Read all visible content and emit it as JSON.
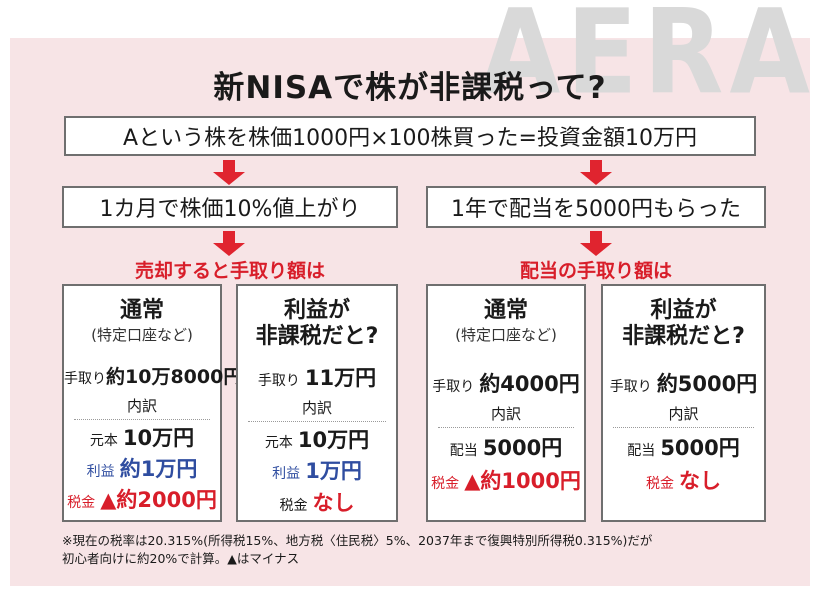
{
  "watermark": "AERA",
  "title": "新NISAで株が非課税って?",
  "premise": "Aという株を株価1000円×100株買った=投資金額10万円",
  "scenarios": {
    "left": "1カ月で株価10%値上がり",
    "right": "1年で配当を5000円もらった"
  },
  "section_labels": {
    "sell": "売却すると手取り額は",
    "dividend": "配当の手取り額は"
  },
  "cards": [
    {
      "head1": "通常",
      "head2": "(特定口座など)",
      "take_label": "手取り",
      "take_value": "約10万8000円",
      "breakdown": "内訳",
      "principal_label": "元本",
      "principal_value": "10万円",
      "profit_label": "利益",
      "profit_value": "約1万円",
      "tax_label": "税金",
      "tax_value": "▲約2000円"
    },
    {
      "head1": "利益が",
      "head2": "非課税だと?",
      "take_label": "手取り",
      "take_value": "11万円",
      "breakdown": "内訳",
      "principal_label": "元本",
      "principal_value": "10万円",
      "profit_label": "利益",
      "profit_value": "1万円",
      "tax_label": "税金",
      "tax_value": "なし"
    },
    {
      "head1": "通常",
      "head2": "(特定口座など)",
      "take_label": "手取り",
      "take_value": "約4000円",
      "breakdown": "内訳",
      "dividend_label": "配当",
      "dividend_value": "5000円",
      "tax_label": "税金",
      "tax_value": "▲約1000円"
    },
    {
      "head1": "利益が",
      "head2": "非課税だと?",
      "take_label": "手取り",
      "take_value": "約5000円",
      "breakdown": "内訳",
      "dividend_label": "配当",
      "dividend_value": "5000円",
      "tax_label": "税金",
      "tax_value": "なし"
    }
  ],
  "note": {
    "line1": "※現在の税率は20.315%(所得税15%、地方税〈住民税〉5%、2037年まで復興特別所得税0.315%)だが",
    "line2": "初心者向けに約20%で計算。▲はマイナス"
  },
  "colors": {
    "accent_red": "#d81e2a",
    "accent_blue": "#2f4da0",
    "background_pink": "#f7e4e6"
  }
}
